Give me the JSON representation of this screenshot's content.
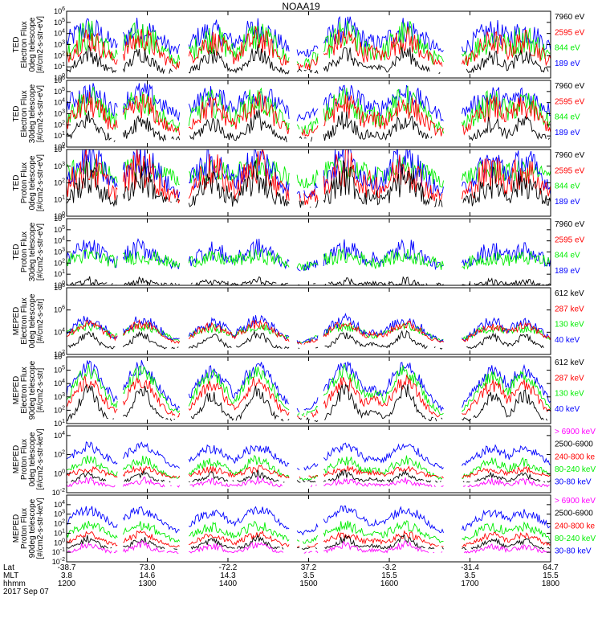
{
  "title": "NOAA19",
  "colors": {
    "blue": "#0000ff",
    "red": "#ff0000",
    "green": "#00ee00",
    "black": "#000000",
    "magenta": "#ff00ff"
  },
  "chart_data": [
    {
      "type": "line",
      "instrument": "TED",
      "ylabel_lines": [
        "TED",
        "Electron Flux",
        "0deg telescope",
        "[#/cm2-s-str-eV]"
      ],
      "ylog": true,
      "ylim_exp": [
        0,
        6
      ],
      "yticks": [
        "10^0",
        "10^1",
        "10^2",
        "10^3",
        "10^4",
        "10^5",
        "10^6"
      ],
      "legend": [
        {
          "label": "7960 eV",
          "color": "black"
        },
        {
          "label": "2595 eV",
          "color": "red"
        },
        {
          "label": "844 eV",
          "color": "green"
        },
        {
          "label": "189 eV",
          "color": "blue"
        }
      ],
      "series": [
        {
          "color": "blue",
          "base": 2.0,
          "amp": 2.4,
          "width": 0.055,
          "noise": 0.9,
          "level": "mid"
        },
        {
          "color": "green",
          "base": 1.2,
          "amp": 2.6,
          "width": 0.05,
          "noise": 1.1,
          "level": "mid"
        },
        {
          "color": "red",
          "base": 1.0,
          "amp": 2.5,
          "width": 0.045,
          "noise": 0.9,
          "level": "mid"
        },
        {
          "color": "black",
          "base": 0.6,
          "amp": 1.6,
          "width": 0.04,
          "noise": 0.6,
          "level": "low"
        }
      ]
    },
    {
      "type": "line",
      "instrument": "TED",
      "ylabel_lines": [
        "TED",
        "Electron Flux",
        "30deg telescope",
        "[#/cm2-s-str-eV]"
      ],
      "ylog": true,
      "ylim_exp": [
        0,
        6
      ],
      "yticks": [
        "10^0",
        "10^1",
        "10^2",
        "10^3",
        "10^4",
        "10^5",
        "10^6"
      ],
      "legend": [
        {
          "label": "7960 eV",
          "color": "black"
        },
        {
          "label": "2595 eV",
          "color": "red"
        },
        {
          "label": "844 eV",
          "color": "green"
        },
        {
          "label": "189 eV",
          "color": "blue"
        }
      ],
      "series": [
        {
          "color": "blue",
          "base": 2.3,
          "amp": 2.5,
          "width": 0.06,
          "noise": 0.8,
          "level": "mid"
        },
        {
          "color": "green",
          "base": 1.4,
          "amp": 2.8,
          "width": 0.05,
          "noise": 1.0,
          "level": "mid"
        },
        {
          "color": "red",
          "base": 1.2,
          "amp": 2.6,
          "width": 0.045,
          "noise": 0.9,
          "level": "mid"
        },
        {
          "color": "black",
          "base": 0.7,
          "amp": 1.8,
          "width": 0.04,
          "noise": 0.7,
          "level": "low"
        }
      ]
    },
    {
      "type": "line",
      "instrument": "TED",
      "ylabel_lines": [
        "TED",
        "Proton Flux",
        "0deg telescope",
        "[#/cm2-s-str-eV]"
      ],
      "ylog": true,
      "ylim_exp": [
        0,
        4
      ],
      "yticks": [
        "10^0",
        "10^1",
        "10^2",
        "10^3",
        "10^4"
      ],
      "legend": [
        {
          "label": "7960 eV",
          "color": "black"
        },
        {
          "label": "2595 eV",
          "color": "red"
        },
        {
          "label": "844 eV",
          "color": "green"
        },
        {
          "label": "189 eV",
          "color": "blue"
        }
      ],
      "series": [
        {
          "color": "green",
          "base": 1.4,
          "amp": 1.5,
          "width": 0.09,
          "noise": 0.5,
          "level": "mid"
        },
        {
          "color": "blue",
          "base": 1.2,
          "amp": 2.2,
          "width": 0.05,
          "noise": 0.8,
          "level": "mid"
        },
        {
          "color": "red",
          "base": 1.0,
          "amp": 1.9,
          "width": 0.045,
          "noise": 0.9,
          "level": "mid"
        },
        {
          "color": "black",
          "base": 0.8,
          "amp": 1.5,
          "width": 0.045,
          "noise": 0.8,
          "level": "low"
        }
      ]
    },
    {
      "type": "line",
      "instrument": "TED",
      "ylabel_lines": [
        "TED",
        "Proton Flux",
        "30deg telescope",
        "[#/cm2-s-str-eV]"
      ],
      "ylog": true,
      "ylim_exp": [
        0,
        6
      ],
      "yticks": [
        "10^0",
        "10^1",
        "10^2",
        "10^3",
        "10^4",
        "10^5",
        "10^6"
      ],
      "legend": [
        {
          "label": "7960 eV",
          "color": "black"
        },
        {
          "label": "2595 eV",
          "color": "red"
        },
        {
          "label": "844 eV",
          "color": "green"
        },
        {
          "label": "189 eV",
          "color": "blue"
        }
      ],
      "series": [
        {
          "color": "blue",
          "base": 1.5,
          "amp": 1.8,
          "width": 0.05,
          "noise": 0.7,
          "level": "mid"
        },
        {
          "color": "green",
          "base": 1.0,
          "amp": 1.6,
          "width": 0.09,
          "noise": 0.5,
          "level": "mid"
        },
        {
          "color": "black",
          "base": 0.1,
          "amp": 0.3,
          "width": 0.03,
          "noise": 0.3,
          "level": "low"
        }
      ]
    },
    {
      "type": "line",
      "instrument": "MEPED",
      "ylabel_lines": [
        "MEPED",
        "Electron Flux",
        "0deg telescope",
        "[#/cm2-s-str]"
      ],
      "ylog": true,
      "ylim_exp": [
        2,
        8
      ],
      "yticks": [
        "10^2",
        "10^4",
        "10^6",
        "10^8"
      ],
      "legend": [
        {
          "label": "612 keV",
          "color": "black"
        },
        {
          "label": "287 keV",
          "color": "red"
        },
        {
          "label": "130 keV",
          "color": "green"
        },
        {
          "label": "40 keV",
          "color": "blue"
        }
      ],
      "series": [
        {
          "color": "green",
          "base": 2.9,
          "amp": 1.6,
          "width": 0.06,
          "noise": 0.3,
          "level": "mid"
        },
        {
          "color": "blue",
          "base": 3.0,
          "amp": 2.1,
          "width": 0.05,
          "noise": 0.4,
          "level": "mid"
        },
        {
          "color": "red",
          "base": 2.9,
          "amp": 1.8,
          "width": 0.05,
          "noise": 0.3,
          "level": "mid"
        },
        {
          "color": "black",
          "base": 2.6,
          "amp": 1.2,
          "width": 0.035,
          "noise": 0.3,
          "level": "low"
        }
      ]
    },
    {
      "type": "line",
      "instrument": "MEPED",
      "ylabel_lines": [
        "MEPED",
        "Electron Flux",
        "90deg telescope",
        "[#/cm2-s-str]"
      ],
      "ylog": true,
      "ylim_exp": [
        1,
        6
      ],
      "yticks": [
        "10^1",
        "10^2",
        "10^3",
        "10^4",
        "10^5",
        "10^6"
      ],
      "legend": [
        {
          "label": "612 keV",
          "color": "black"
        },
        {
          "label": "287 keV",
          "color": "red"
        },
        {
          "label": "130 keV",
          "color": "green"
        },
        {
          "label": "40 keV",
          "color": "blue"
        }
      ],
      "series": [
        {
          "color": "blue",
          "base": 1.8,
          "amp": 3.4,
          "width": 0.05,
          "noise": 0.4,
          "level": "mid"
        },
        {
          "color": "green",
          "base": 1.6,
          "amp": 3.3,
          "width": 0.045,
          "noise": 0.4,
          "level": "mid"
        },
        {
          "color": "red",
          "base": 1.5,
          "amp": 2.6,
          "width": 0.04,
          "noise": 0.4,
          "level": "mid"
        },
        {
          "color": "black",
          "base": 1.3,
          "amp": 2.2,
          "width": 0.035,
          "noise": 0.4,
          "level": "low"
        }
      ]
    },
    {
      "type": "line",
      "instrument": "MEPED",
      "ylabel_lines": [
        "MEPED",
        "Proton Flux",
        "0deg telescope",
        "[#/cm2-s-str-keV]"
      ],
      "ylog": true,
      "ylim_exp": [
        -2,
        5
      ],
      "yticks": [
        "10^-2",
        "10^0",
        "10^2",
        "10^4"
      ],
      "legend": [
        {
          "label": "> 6900 keV",
          "color": "magenta"
        },
        {
          "label": "2500-6900",
          "color": "black"
        },
        {
          "label": "240-800 ke",
          "color": "red"
        },
        {
          "label": "80-240 keV",
          "color": "green"
        },
        {
          "label": "30-80 keV",
          "color": "blue"
        }
      ],
      "series": [
        {
          "color": "blue",
          "base": 0.4,
          "amp": 2.4,
          "width": 0.05,
          "noise": 0.4,
          "level": "mid"
        },
        {
          "color": "green",
          "base": -0.6,
          "amp": 2.0,
          "width": 0.045,
          "noise": 0.4,
          "level": "mid"
        },
        {
          "color": "red",
          "base": -0.4,
          "amp": 0.9,
          "width": 0.04,
          "noise": 0.3,
          "level": "mid"
        },
        {
          "color": "black",
          "base": -0.8,
          "amp": 0.8,
          "width": 0.03,
          "noise": 0.3,
          "level": "low"
        },
        {
          "color": "magenta",
          "base": -1.3,
          "amp": 0.6,
          "width": 0.04,
          "noise": 0.3,
          "level": "low"
        }
      ]
    },
    {
      "type": "line",
      "instrument": "MEPED",
      "ylabel_lines": [
        "MEPED",
        "Proton Flux",
        "90deg telescope",
        "[#/cm2-s-str-keV]"
      ],
      "ylog": true,
      "ylim_exp": [
        -2,
        5
      ],
      "yticks": [
        "10^-2",
        "10^-1",
        "10^0",
        "10^1",
        "10^2",
        "10^3",
        "10^4"
      ],
      "legend": [
        {
          "label": "> 6900 keV",
          "color": "magenta"
        },
        {
          "label": "2500-6900",
          "color": "black"
        },
        {
          "label": "240-800 ke",
          "color": "red"
        },
        {
          "label": "80-240 keV",
          "color": "green"
        },
        {
          "label": "30-80 keV",
          "color": "blue"
        }
      ],
      "series": [
        {
          "color": "blue",
          "base": 0.8,
          "amp": 2.6,
          "width": 0.055,
          "noise": 0.4,
          "level": "mid"
        },
        {
          "color": "green",
          "base": 0.0,
          "amp": 1.8,
          "width": 0.05,
          "noise": 0.4,
          "level": "mid"
        },
        {
          "color": "red",
          "base": -0.4,
          "amp": 1.3,
          "width": 0.04,
          "noise": 0.3,
          "level": "mid"
        },
        {
          "color": "black",
          "base": -0.6,
          "amp": 1.0,
          "width": 0.035,
          "noise": 0.3,
          "level": "low"
        },
        {
          "color": "magenta",
          "base": -1.0,
          "amp": 0.8,
          "width": 0.04,
          "noise": 0.3,
          "level": "low"
        }
      ]
    }
  ],
  "passes": [
    {
      "center": 0.045,
      "strength": 1.0
    },
    {
      "center": 0.155,
      "strength": 1.0
    },
    {
      "center": 0.3,
      "strength": 0.9
    },
    {
      "center": 0.395,
      "strength": 1.0
    },
    {
      "center": 0.575,
      "strength": 1.0
    },
    {
      "center": 0.63,
      "strength": 0.5
    },
    {
      "center": 0.7,
      "strength": 1.0
    },
    {
      "center": 0.88,
      "strength": 0.9
    },
    {
      "center": 0.945,
      "strength": 0.9
    }
  ],
  "gaps": [
    [
      0.105,
      0.115
    ],
    [
      0.235,
      0.25
    ],
    [
      0.46,
      0.475
    ],
    [
      0.52,
      0.53
    ],
    [
      0.78,
      0.815
    ]
  ],
  "footer": {
    "row_labels": [
      "Lat",
      "MLT",
      "hhmm"
    ],
    "date": "2017 Sep 07",
    "ticks": [
      {
        "x": 0.0,
        "lat": "-38.7",
        "mlt": "3.8",
        "hhmm": "1200"
      },
      {
        "x": 0.1667,
        "lat": "73.0",
        "mlt": "14.6",
        "hhmm": "1300"
      },
      {
        "x": 0.3333,
        "lat": "-72.2",
        "mlt": "14.3",
        "hhmm": "1400"
      },
      {
        "x": 0.5,
        "lat": "37.2",
        "mlt": "3.5",
        "hhmm": "1500"
      },
      {
        "x": 0.6667,
        "lat": "-3.2",
        "mlt": "15.5",
        "hhmm": "1600"
      },
      {
        "x": 0.8333,
        "lat": "-31.4",
        "mlt": "3.5",
        "hhmm": "1700"
      },
      {
        "x": 1.0,
        "lat": "64.7",
        "mlt": "15.5",
        "hhmm": "1800"
      }
    ]
  }
}
